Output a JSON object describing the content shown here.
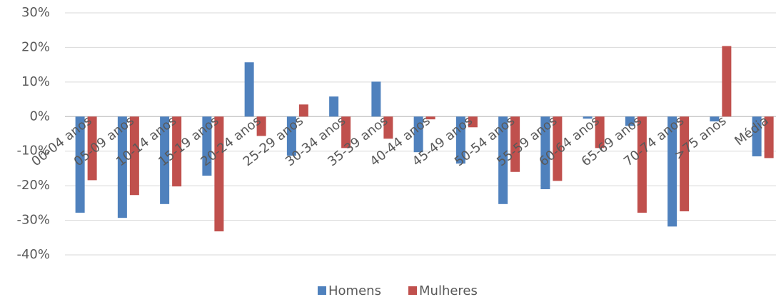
{
  "chart_data": {
    "type": "bar",
    "categories": [
      "00-04 anos",
      "05-09 anos",
      "10-14 anos",
      "15-19 anos",
      "20-24 anos",
      "25-29 anos",
      "30-34 anos",
      "35-39 anos",
      "40-44 anos",
      "45-49 anos",
      "50-54 anos",
      "55-59 anos",
      "60-64 anos",
      "65-69 anos",
      "70-74 anos",
      ">75 anos",
      "Média"
    ],
    "series": [
      {
        "name": "Homens",
        "color": "#4f81bd",
        "values": [
          -27.8,
          -29.3,
          -25.3,
          -17.1,
          15.7,
          -11.3,
          5.8,
          10.1,
          -10.3,
          -13.6,
          -25.3,
          -21,
          -0.6,
          -2.7,
          -31.8,
          -1.4,
          -11.5
        ]
      },
      {
        "name": "Mulheres",
        "color": "#c0504d",
        "values": [
          -18.4,
          -22.7,
          -20.2,
          -33.2,
          -5.6,
          3.5,
          -9.1,
          -6.4,
          -0.8,
          -3.1,
          -16,
          -18.6,
          -9.1,
          -27.8,
          -27.4,
          20.4,
          -12
        ]
      }
    ],
    "ylim": [
      -40,
      30
    ],
    "yticks": [
      {
        "value": -40,
        "label": "-40%"
      },
      {
        "value": -30,
        "label": "-30%"
      },
      {
        "value": -20,
        "label": "-20%"
      },
      {
        "value": -10,
        "label": "-10%"
      },
      {
        "value": 0,
        "label": "0%"
      },
      {
        "value": 10,
        "label": "10%"
      },
      {
        "value": 20,
        "label": "20%"
      },
      {
        "value": 30,
        "label": "30%"
      }
    ],
    "grid": true,
    "legend": "bottom"
  }
}
